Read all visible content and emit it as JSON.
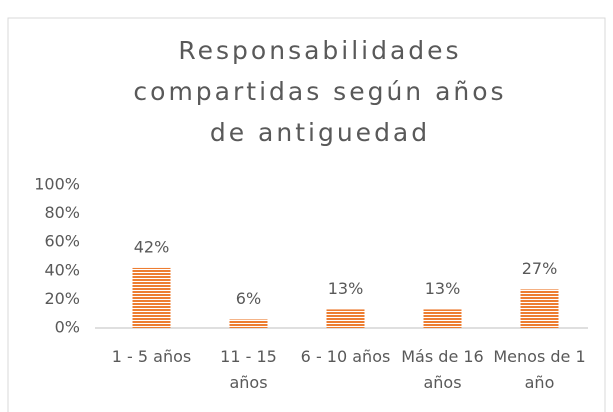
{
  "chart_data": {
    "type": "bar",
    "title": "Responsabilidades compartidas según años de antiguedad",
    "categories": [
      "1 - 5 años",
      "11 - 15 años",
      "6 - 10 años",
      "Más de 16 años",
      "Menos de 1 año"
    ],
    "values": [
      42,
      6,
      13,
      13,
      27
    ],
    "value_labels": [
      "42%",
      "6%",
      "13%",
      "13%",
      "27%"
    ],
    "color": "#ED7D31",
    "ylim": [
      0,
      100
    ],
    "yticks": [
      {
        "value": 0,
        "label": "0%"
      },
      {
        "value": 20,
        "label": "20%"
      },
      {
        "value": 40,
        "label": "40%"
      },
      {
        "value": 60,
        "label": "60%"
      },
      {
        "value": 80,
        "label": "80%"
      },
      {
        "value": 100,
        "label": "100%"
      }
    ],
    "grid": false
  }
}
